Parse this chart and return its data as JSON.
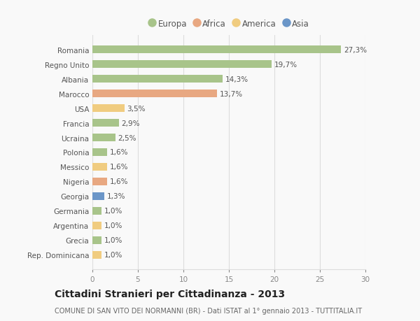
{
  "categories": [
    "Romania",
    "Regno Unito",
    "Albania",
    "Marocco",
    "USA",
    "Francia",
    "Ucraina",
    "Polonia",
    "Messico",
    "Nigeria",
    "Georgia",
    "Germania",
    "Argentina",
    "Grecia",
    "Rep. Dominicana"
  ],
  "values": [
    27.3,
    19.7,
    14.3,
    13.7,
    3.5,
    2.9,
    2.5,
    1.6,
    1.6,
    1.6,
    1.3,
    1.0,
    1.0,
    1.0,
    1.0
  ],
  "labels": [
    "27,3%",
    "19,7%",
    "14,3%",
    "13,7%",
    "3,5%",
    "2,9%",
    "2,5%",
    "1,6%",
    "1,6%",
    "1,6%",
    "1,3%",
    "1,0%",
    "1,0%",
    "1,0%",
    "1,0%"
  ],
  "continents": [
    "Europa",
    "Europa",
    "Europa",
    "Africa",
    "America",
    "Europa",
    "Europa",
    "Europa",
    "America",
    "Africa",
    "Asia",
    "Europa",
    "America",
    "Europa",
    "America"
  ],
  "colors": {
    "Europa": "#a8c48a",
    "Africa": "#e8a882",
    "America": "#f0cc80",
    "Asia": "#6b96c8"
  },
  "legend_items": [
    "Europa",
    "Africa",
    "America",
    "Asia"
  ],
  "legend_colors": [
    "#a8c48a",
    "#e8a882",
    "#f0cc80",
    "#6b96c8"
  ],
  "title": "Cittadini Stranieri per Cittadinanza - 2013",
  "subtitle": "COMUNE DI SAN VITO DEI NORMANNI (BR) - Dati ISTAT al 1° gennaio 2013 - TUTTITALIA.IT",
  "xlim": [
    0,
    30
  ],
  "xticks": [
    0,
    5,
    10,
    15,
    20,
    25,
    30
  ],
  "background_color": "#f9f9f9",
  "grid_color": "#dddddd",
  "bar_height": 0.55,
  "label_fontsize": 7.5,
  "tick_fontsize": 7.5,
  "title_fontsize": 10,
  "subtitle_fontsize": 7
}
